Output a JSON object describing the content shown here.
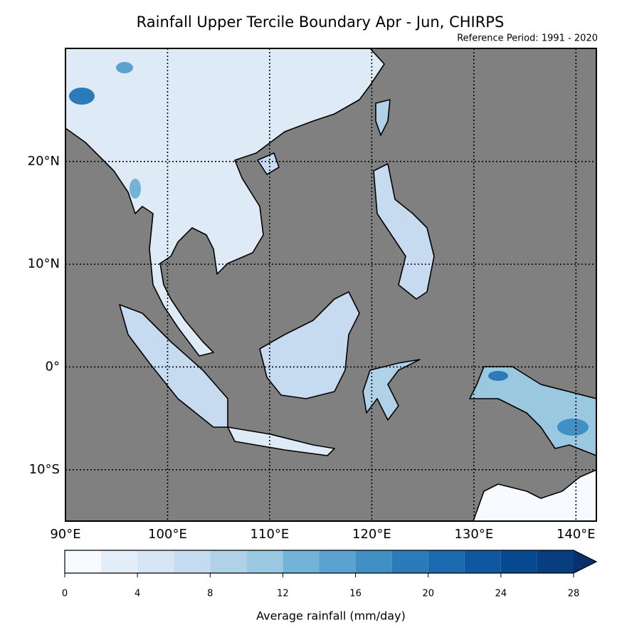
{
  "title": "Rainfall Upper Tercile Boundary Apr - Jun, CHIRPS",
  "subtitle": "Reference Period: 1991 - 2020",
  "map": {
    "xlim": [
      90,
      142
    ],
    "ylim": [
      -15,
      31
    ],
    "xticks": [
      {
        "value": 90,
        "label": "90°E"
      },
      {
        "value": 100,
        "label": "100°E"
      },
      {
        "value": 110,
        "label": "110°E"
      },
      {
        "value": 120,
        "label": "120°E"
      },
      {
        "value": 130,
        "label": "130°E"
      },
      {
        "value": 140,
        "label": "140°E"
      }
    ],
    "yticks": [
      {
        "value": -10,
        "label": "10°S"
      },
      {
        "value": 0,
        "label": "0°"
      },
      {
        "value": 10,
        "label": "10°N"
      },
      {
        "value": 20,
        "label": "20°N"
      }
    ],
    "grid": true,
    "ocean_color": "#808080"
  },
  "colorbar": {
    "label": "Average rainfall (mm/day)",
    "bounds": [
      0,
      2,
      4,
      6,
      8,
      10,
      12,
      14,
      16,
      18,
      20,
      22,
      24,
      26,
      28
    ],
    "colors": [
      "#f7fbff",
      "#e3eef9",
      "#d6e6f4",
      "#c6dbef",
      "#b0d2e8",
      "#9ac8e0",
      "#73b3d8",
      "#5aa2cf",
      "#4090c5",
      "#2b7bba",
      "#1b69af",
      "#0d58a1",
      "#084a91",
      "#083d7f"
    ],
    "extend": "max",
    "extend_color": "#08306b",
    "ticks": [
      0,
      4,
      8,
      12,
      16,
      20,
      24,
      28
    ]
  }
}
